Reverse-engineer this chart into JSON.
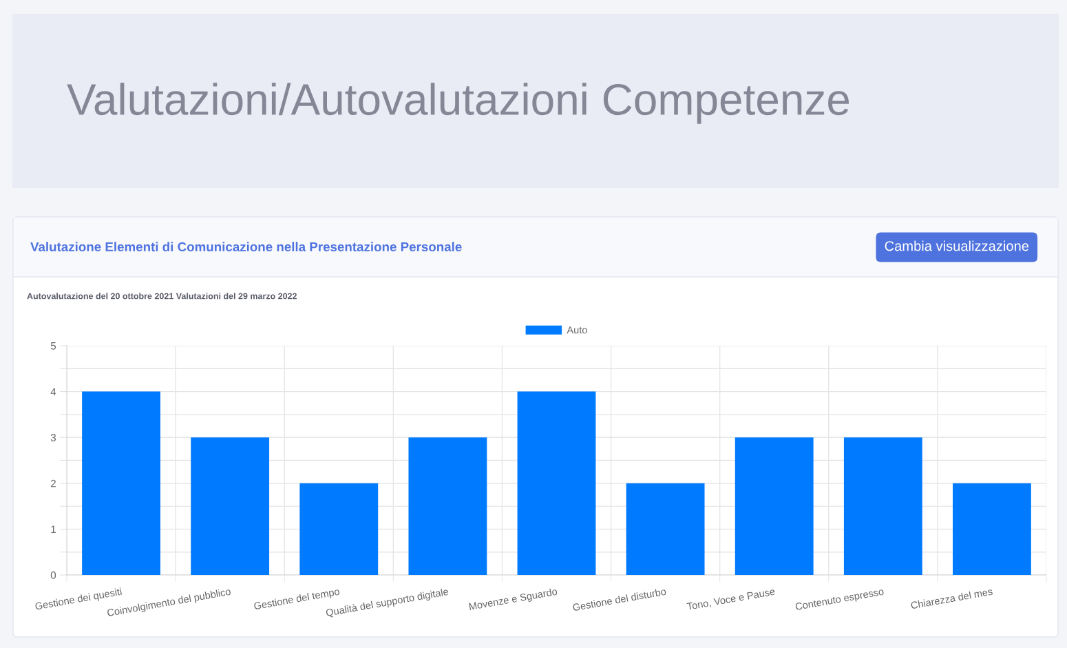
{
  "chart_data": {
    "type": "bar",
    "title": "Valutazioni/Autovalutazioni Competenze",
    "subtitle": "Valutazione Elementi di Comunicazione nella Presentazione Personale",
    "annotations": [
      "Autovalutazione del 20 ottobre 2021 Valutazioni del 29 marzo 2022",
      "Cambia visualizzazione"
    ],
    "categories": [
      "Gestione dei quesiti",
      "Coinvolgimento del pubblico",
      "Gestione del tempo",
      "Qualità del supporto digitale",
      "Movenze e Sguardo",
      "Gestione del disturbo",
      "Tono, Voce e Pause",
      "Contenuto espresso",
      "Chiarezza del mes"
    ],
    "series": [
      {
        "name": "Auto",
        "color": "#007bff",
        "values": [
          4,
          3,
          2,
          3,
          4,
          2,
          3,
          3,
          2
        ]
      }
    ],
    "ylim": [
      0,
      5
    ],
    "yticks": [
      0,
      {
        "value": 0.5,
        "label": null
      },
      1,
      {
        "value": 1.5,
        "label": null
      },
      2,
      {
        "value": 2.5,
        "label": null
      },
      3,
      {
        "value": 3.5,
        "label": null
      },
      4,
      {
        "value": 4.5,
        "label": null
      },
      5
    ],
    "grid": true,
    "legend": "top"
  }
}
